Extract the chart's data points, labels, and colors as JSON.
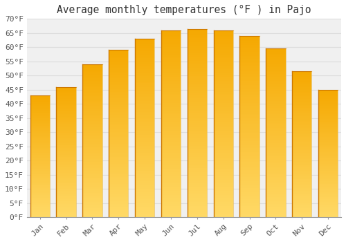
{
  "title": "Average monthly temperatures (°F ) in Pajo",
  "months": [
    "Jan",
    "Feb",
    "Mar",
    "Apr",
    "May",
    "Jun",
    "Jul",
    "Aug",
    "Sep",
    "Oct",
    "Nov",
    "Dec"
  ],
  "values": [
    43,
    46,
    54,
    59,
    63,
    66,
    66.5,
    66,
    64,
    59.5,
    51.5,
    45
  ],
  "bar_color_top": "#F5A800",
  "bar_color_mid": "#FFCC00",
  "bar_color_bottom": "#FFD966",
  "bar_edge_color": "#CC7700",
  "background_color": "#FFFFFF",
  "plot_bg_color": "#F0F0F0",
  "grid_color": "#DDDDDD",
  "ylim": [
    0,
    70
  ],
  "yticks": [
    0,
    5,
    10,
    15,
    20,
    25,
    30,
    35,
    40,
    45,
    50,
    55,
    60,
    65,
    70
  ],
  "title_fontsize": 10.5,
  "tick_fontsize": 8,
  "bar_width": 0.75
}
